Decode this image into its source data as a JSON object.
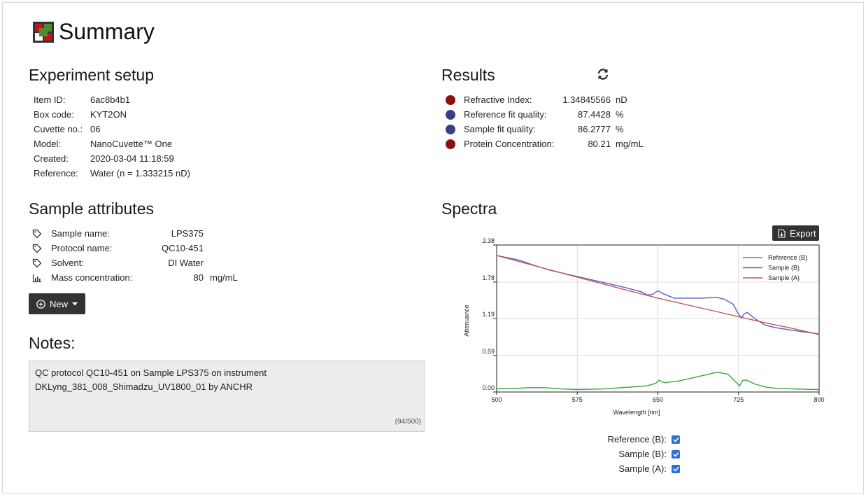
{
  "page": {
    "title": "Summary"
  },
  "setup": {
    "heading": "Experiment setup",
    "rows": [
      {
        "label": "Item ID:",
        "value": "6ac8b4b1"
      },
      {
        "label": "Box code:",
        "value": "KYT2ON"
      },
      {
        "label": "Cuvette no.:",
        "value": "06"
      },
      {
        "label": "Model:",
        "value": "NanoCuvette™ One"
      },
      {
        "label": "Created:",
        "value": "2020-03-04 11:18:59"
      },
      {
        "label": "Reference:",
        "value": "Water (n = 1.333215 nD)"
      }
    ]
  },
  "attributes": {
    "heading": "Sample attributes",
    "rows": [
      {
        "icon": "tag-icon",
        "label": "Sample name:",
        "value": "LPS375",
        "unit": ""
      },
      {
        "icon": "tag-icon",
        "label": "Protocol name:",
        "value": "QC10-451",
        "unit": ""
      },
      {
        "icon": "tag-icon",
        "label": "Solvent:",
        "value": "DI Water",
        "unit": ""
      },
      {
        "icon": "bar-chart-icon",
        "label": "Mass concentration:",
        "value": "80",
        "unit": "mg/mL"
      }
    ],
    "new_button": "New"
  },
  "notes": {
    "heading": "Notes:",
    "text": "QC protocol QC10-451 on Sample LPS375 on instrument DKLyng_381_008_Shimadzu_UV1800_01 by ANCHR",
    "count": "(94/500)"
  },
  "results": {
    "heading": "Results",
    "rows": [
      {
        "color": "#8b0f0f",
        "label": "Refractive Index:",
        "value": "1.34845566",
        "unit": "nD"
      },
      {
        "color": "#3c3c8c",
        "label": "Reference fit quality:",
        "value": "87.4428",
        "unit": "%"
      },
      {
        "color": "#3c3c8c",
        "label": "Sample fit quality:",
        "value": "86.2777",
        "unit": "%"
      },
      {
        "color": "#8b0f0f",
        "label": "Protein Concentration:",
        "value": "80.21",
        "unit": "mg/mL"
      }
    ]
  },
  "spectra": {
    "heading": "Spectra",
    "export_label": "Export",
    "checks": [
      {
        "label": "Reference (B):",
        "checked": true
      },
      {
        "label": "Sample (B):",
        "checked": true
      },
      {
        "label": "Sample (A):",
        "checked": true
      }
    ]
  },
  "chart_data": {
    "type": "line",
    "xlabel": "Wavelength [nm]",
    "ylabel": "Attenuance",
    "xlim": [
      500,
      800
    ],
    "ylim": [
      0,
      2.38
    ],
    "xticks": [
      "500",
      "575",
      "650",
      "725",
      "800"
    ],
    "yticks": [
      "0.00",
      "0.59",
      "1.19",
      "1.78",
      "2.38"
    ],
    "grid": true,
    "legend_position": "top-right",
    "series": [
      {
        "name": "Reference (B)",
        "color": "#3aa53a",
        "x": [
          500,
          520,
          530,
          545,
          560,
          575,
          600,
          625,
          640,
          648,
          651,
          656,
          670,
          690,
          705,
          715,
          722,
          726,
          729,
          733,
          740,
          750,
          760,
          775,
          800
        ],
        "y": [
          0.05,
          0.06,
          0.07,
          0.07,
          0.05,
          0.04,
          0.05,
          0.08,
          0.1,
          0.14,
          0.19,
          0.15,
          0.18,
          0.26,
          0.32,
          0.29,
          0.17,
          0.1,
          0.19,
          0.19,
          0.13,
          0.08,
          0.06,
          0.05,
          0.04
        ]
      },
      {
        "name": "Sample (B)",
        "color": "#5a5ac0",
        "x": [
          500,
          520,
          535,
          550,
          575,
          600,
          620,
          635,
          640,
          645,
          650,
          655,
          665,
          690,
          705,
          712,
          720,
          725,
          728,
          730,
          733,
          740,
          750,
          760,
          775,
          800
        ],
        "y": [
          2.21,
          2.14,
          2.05,
          1.97,
          1.87,
          1.77,
          1.69,
          1.62,
          1.57,
          1.58,
          1.64,
          1.59,
          1.52,
          1.52,
          1.53,
          1.5,
          1.42,
          1.26,
          1.2,
          1.26,
          1.29,
          1.19,
          1.08,
          1.04,
          1.0,
          0.94
        ]
      },
      {
        "name": "Sample (A)",
        "color": "#c05a5a",
        "x": [
          500,
          530,
          575,
          625,
          650,
          700,
          725,
          750,
          775,
          800
        ],
        "y": [
          2.21,
          2.07,
          1.86,
          1.63,
          1.52,
          1.32,
          1.22,
          1.12,
          1.03,
          0.93
        ]
      }
    ]
  }
}
